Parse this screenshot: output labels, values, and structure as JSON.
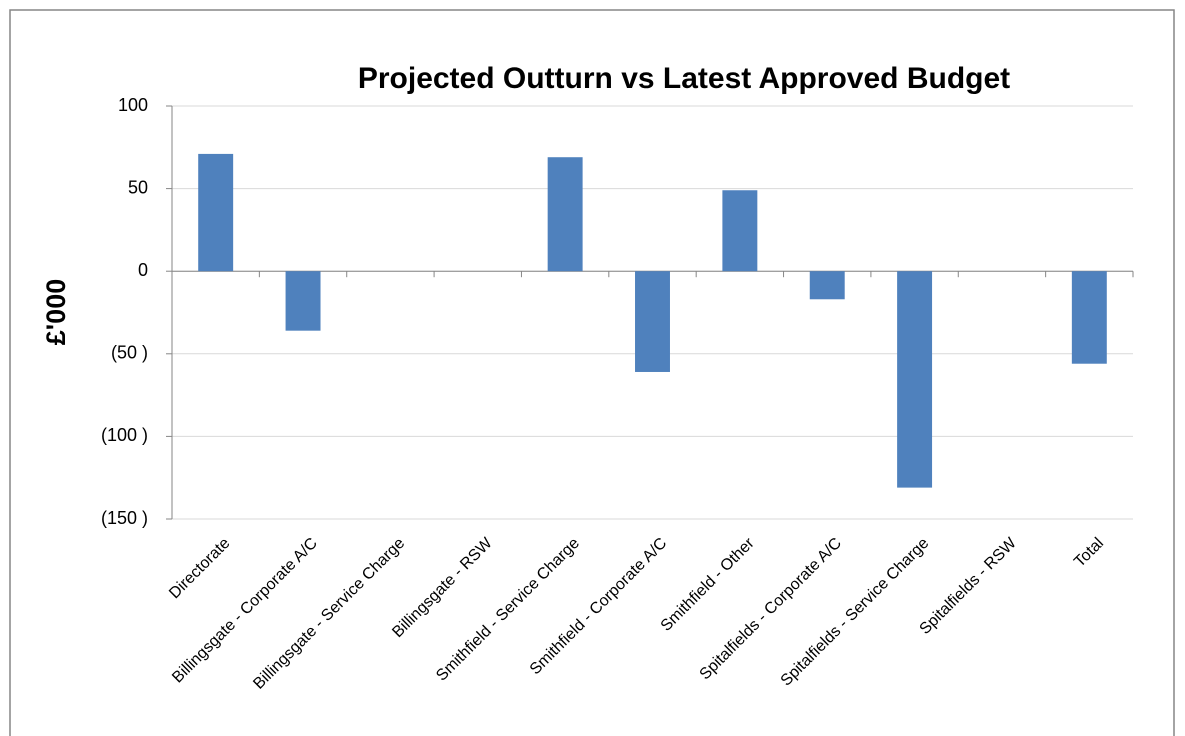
{
  "chart_data": {
    "type": "bar",
    "title": "Projected Outturn vs Latest Approved Budget",
    "y_label": "£'000",
    "categories": [
      "Directorate",
      "Billingsgate - Corporate A/C",
      "Billingsgate - Service Charge",
      "Billingsgate - RSW",
      "Smithfield - Service Charge",
      "Smithfield - Corporate A/C",
      "Smithfield - Other",
      "Spitalfields - Corporate A/C",
      "Spitalfields - Service Charge",
      "Spitalfields - RSW",
      "Total"
    ],
    "values": [
      71,
      -36,
      0,
      0,
      69,
      -61,
      49,
      -17,
      -131,
      0,
      -56
    ],
    "color": "#4f81bd",
    "ylim": [
      -150,
      100
    ],
    "yticks": [
      {
        "value": -150,
        "label": "(150 )"
      },
      {
        "value": -100,
        "label": "(100 )"
      },
      {
        "value": -50,
        "label": "(50 )"
      },
      0,
      50,
      100
    ],
    "grid": true
  }
}
